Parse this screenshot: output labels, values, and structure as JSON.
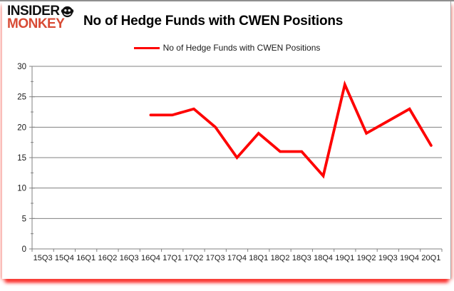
{
  "brand": {
    "line1": "INSIDER",
    "line2": "MONKEY"
  },
  "title": "No of Hedge Funds with CWEN Positions",
  "legend": {
    "label": "No of Hedge Funds with CWEN Positions"
  },
  "colors": {
    "line": "#fe0101",
    "logo_black": "#111111",
    "logo_red": "#d84b35",
    "grid": "#808080",
    "axis": "#808080",
    "tick_label": "#1a1a1a",
    "frame_top": "#8f8f8f",
    "glow": "#ff0000"
  },
  "chart_data": {
    "type": "line",
    "title": "No of Hedge Funds with CWEN Positions",
    "xlabel": "",
    "ylabel": "",
    "categories": [
      "15Q3",
      "15Q4",
      "16Q1",
      "16Q2",
      "16Q3",
      "16Q4",
      "17Q1",
      "17Q2",
      "17Q3",
      "17Q4",
      "18Q1",
      "18Q2",
      "18Q3",
      "18Q4",
      "19Q1",
      "19Q2",
      "19Q3",
      "19Q4",
      "20Q1"
    ],
    "series": [
      {
        "name": "No of Hedge Funds with CWEN Positions",
        "color": "#fe0101",
        "values": [
          null,
          null,
          null,
          null,
          null,
          22,
          22,
          23,
          20,
          15,
          19,
          16,
          16,
          12,
          27,
          19,
          21,
          23,
          17
        ]
      }
    ],
    "ylim": [
      0,
      30
    ],
    "yticks": [
      0,
      5,
      10,
      15,
      20,
      25,
      30
    ],
    "ytick_step": 5,
    "yminor_step": 2.5,
    "grid": true,
    "legend_position": "top-center"
  }
}
